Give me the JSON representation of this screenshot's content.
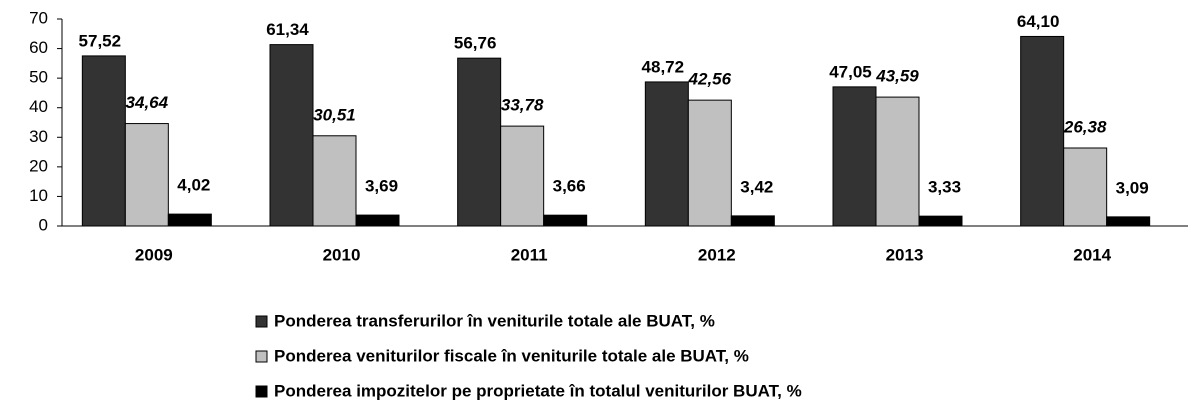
{
  "chart_data": {
    "type": "bar",
    "categories": [
      "2009",
      "2010",
      "2011",
      "2012",
      "2013",
      "2014"
    ],
    "series": [
      {
        "name": "Ponderea transferurilor în veniturile totale ale BUAT, %",
        "color": "#333333",
        "values": [
          57.52,
          61.34,
          56.76,
          48.72,
          47.05,
          64.1
        ],
        "value_labels": [
          "57,52",
          "61,34",
          "56,76",
          "48,72",
          "47,05",
          "64,10"
        ]
      },
      {
        "name": "Ponderea veniturilor fiscale în veniturile totale ale BUAT, %",
        "color": "#c0c0c0",
        "values": [
          34.64,
          30.51,
          33.78,
          42.56,
          43.59,
          26.38
        ],
        "value_labels": [
          "34,64",
          "30,51",
          "33,78",
          "42,56",
          "43,59",
          "26,38"
        ]
      },
      {
        "name": "Ponderea impozitelor pe proprietate în totalul veniturilor BUAT, %",
        "color": "#000000",
        "values": [
          4.02,
          3.69,
          3.66,
          3.42,
          3.33,
          3.09
        ],
        "value_labels": [
          "4,02",
          "3,69",
          "3,66",
          "3,42",
          "3,33",
          "3,09"
        ]
      }
    ],
    "ylim": [
      0,
      70
    ],
    "yticks": [
      0,
      10,
      20,
      30,
      40,
      50,
      60,
      70
    ],
    "legend": "bottom"
  }
}
